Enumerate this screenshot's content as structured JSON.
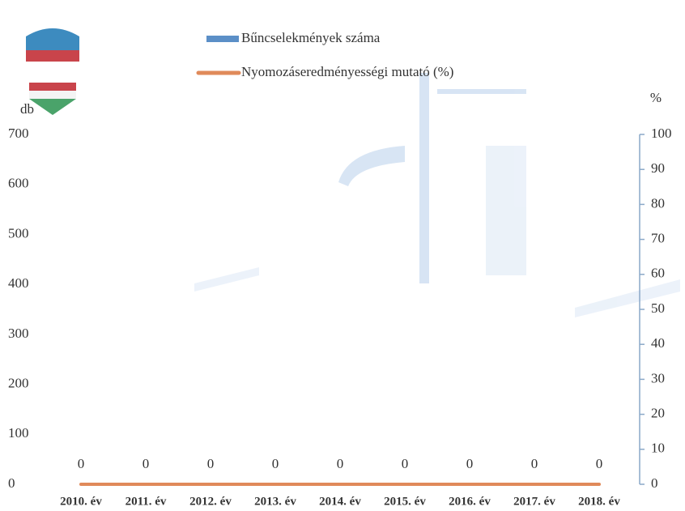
{
  "chart_data": {
    "type": "bar-line",
    "categories": [
      "2010. év",
      "2011. év",
      "2012. év",
      "2013. év",
      "2014. év",
      "2015. év",
      "2016. év",
      "2017. év",
      "2018. év"
    ],
    "series": [
      {
        "name": "Bűncselekmények száma",
        "color": "#5b8fc7",
        "type": "bar",
        "values": [
          0,
          0,
          0,
          0,
          0,
          0,
          0,
          0,
          0
        ]
      },
      {
        "name": "Nyomozáseredményességi mutató (%)",
        "color": "#e08a5a",
        "type": "line",
        "axis": "y2",
        "values": [
          0,
          0,
          0,
          0,
          0,
          0,
          0,
          0,
          0
        ]
      }
    ],
    "ylabel": "db",
    "y2label": "%",
    "ylim": [
      0,
      700
    ],
    "yticks": [
      0,
      100,
      200,
      300,
      400,
      500,
      600,
      700
    ],
    "y2lim": [
      0,
      100
    ],
    "y2ticks": [
      0,
      10,
      20,
      30,
      40,
      50,
      60,
      70,
      80,
      90,
      100
    ],
    "grid": false
  }
}
